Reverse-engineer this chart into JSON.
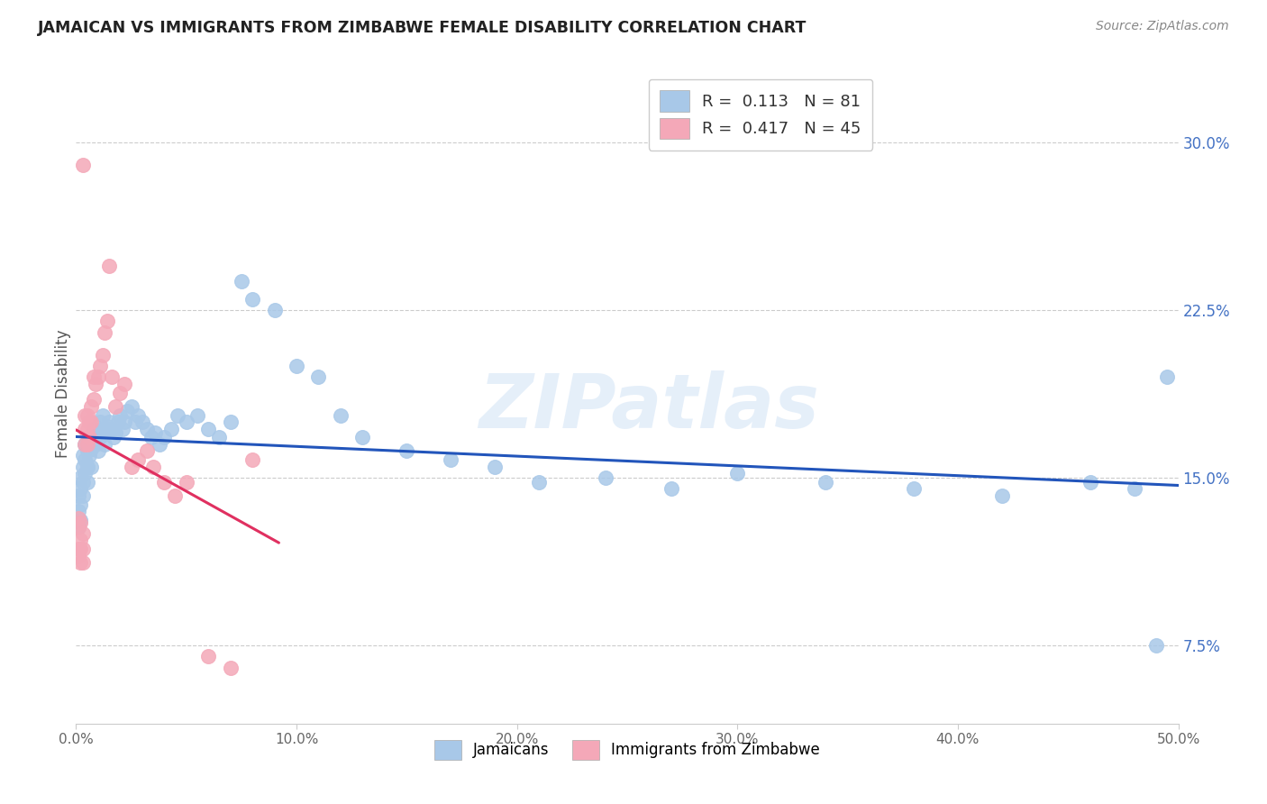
{
  "title": "JAMAICAN VS IMMIGRANTS FROM ZIMBABWE FEMALE DISABILITY CORRELATION CHART",
  "source": "Source: ZipAtlas.com",
  "ylabel": "Female Disability",
  "ytick_vals": [
    0.075,
    0.15,
    0.225,
    0.3
  ],
  "ytick_labels": [
    "7.5%",
    "15.0%",
    "22.5%",
    "30.0%"
  ],
  "xlim": [
    0.0,
    0.5
  ],
  "ylim": [
    0.04,
    0.335
  ],
  "blue_color": "#a8c8e8",
  "pink_color": "#f4a8b8",
  "blue_line_color": "#2255bb",
  "pink_line_color": "#e03060",
  "watermark": "ZIPatlas",
  "jamaicans_x": [
    0.001,
    0.001,
    0.001,
    0.002,
    0.002,
    0.002,
    0.002,
    0.003,
    0.003,
    0.003,
    0.003,
    0.004,
    0.004,
    0.004,
    0.005,
    0.005,
    0.005,
    0.005,
    0.006,
    0.006,
    0.007,
    0.007,
    0.008,
    0.008,
    0.009,
    0.009,
    0.01,
    0.01,
    0.011,
    0.011,
    0.012,
    0.012,
    0.013,
    0.013,
    0.014,
    0.015,
    0.016,
    0.017,
    0.018,
    0.019,
    0.02,
    0.021,
    0.022,
    0.023,
    0.025,
    0.027,
    0.028,
    0.03,
    0.032,
    0.034,
    0.036,
    0.038,
    0.04,
    0.043,
    0.046,
    0.05,
    0.055,
    0.06,
    0.065,
    0.07,
    0.075,
    0.08,
    0.09,
    0.1,
    0.11,
    0.12,
    0.13,
    0.15,
    0.17,
    0.19,
    0.21,
    0.24,
    0.27,
    0.3,
    0.34,
    0.38,
    0.42,
    0.46,
    0.48,
    0.49,
    0.495
  ],
  "jamaicans_y": [
    0.135,
    0.142,
    0.128,
    0.138,
    0.145,
    0.131,
    0.15,
    0.148,
    0.142,
    0.155,
    0.16,
    0.152,
    0.158,
    0.165,
    0.155,
    0.162,
    0.148,
    0.155,
    0.16,
    0.168,
    0.155,
    0.163,
    0.168,
    0.172,
    0.165,
    0.17,
    0.162,
    0.17,
    0.168,
    0.175,
    0.172,
    0.178,
    0.17,
    0.165,
    0.173,
    0.175,
    0.172,
    0.168,
    0.17,
    0.175,
    0.178,
    0.172,
    0.175,
    0.18,
    0.182,
    0.175,
    0.178,
    0.175,
    0.172,
    0.168,
    0.17,
    0.165,
    0.168,
    0.172,
    0.178,
    0.175,
    0.178,
    0.172,
    0.168,
    0.175,
    0.238,
    0.23,
    0.225,
    0.2,
    0.195,
    0.178,
    0.168,
    0.162,
    0.158,
    0.155,
    0.148,
    0.15,
    0.145,
    0.152,
    0.148,
    0.145,
    0.142,
    0.148,
    0.145,
    0.075,
    0.195
  ],
  "zimbabwe_x": [
    0.001,
    0.001,
    0.001,
    0.001,
    0.002,
    0.002,
    0.002,
    0.002,
    0.003,
    0.003,
    0.003,
    0.003,
    0.004,
    0.004,
    0.004,
    0.005,
    0.005,
    0.005,
    0.006,
    0.006,
    0.007,
    0.007,
    0.008,
    0.008,
    0.009,
    0.01,
    0.011,
    0.012,
    0.013,
    0.014,
    0.015,
    0.016,
    0.018,
    0.02,
    0.022,
    0.025,
    0.028,
    0.032,
    0.035,
    0.04,
    0.045,
    0.05,
    0.06,
    0.07,
    0.08
  ],
  "zimbabwe_y": [
    0.128,
    0.132,
    0.118,
    0.115,
    0.13,
    0.122,
    0.118,
    0.112,
    0.29,
    0.125,
    0.118,
    0.112,
    0.178,
    0.172,
    0.165,
    0.178,
    0.172,
    0.165,
    0.175,
    0.168,
    0.182,
    0.175,
    0.195,
    0.185,
    0.192,
    0.195,
    0.2,
    0.205,
    0.215,
    0.22,
    0.245,
    0.195,
    0.182,
    0.188,
    0.192,
    0.155,
    0.158,
    0.162,
    0.155,
    0.148,
    0.142,
    0.148,
    0.07,
    0.065,
    0.158
  ],
  "pink_line_x": [
    0.0,
    0.092
  ],
  "R_blue": 0.113,
  "N_blue": 81,
  "R_pink": 0.417,
  "N_pink": 45
}
